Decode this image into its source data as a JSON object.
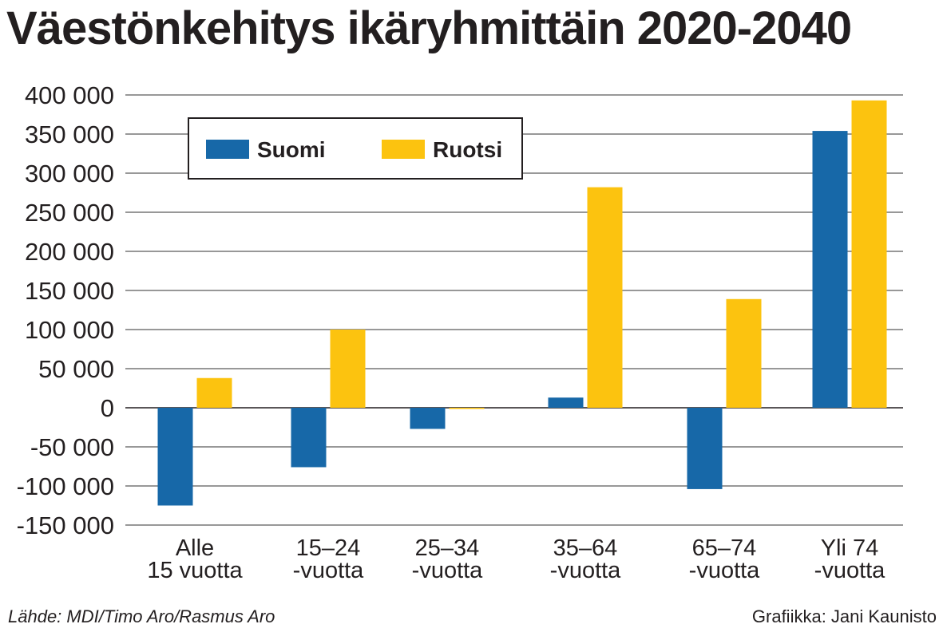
{
  "title": "Väestönkehitys ikäryhmittäin 2020-2040",
  "source": "Lähde: MDI/Timo Aro/Rasmus Aro",
  "credit": "Grafiikka: Jani Kaunisto",
  "colors": {
    "suomi": "#1768a8",
    "ruotsi": "#fcc30f",
    "grid": "#5a5a5a",
    "text": "#231f20"
  },
  "chart_data": {
    "type": "bar",
    "categories": [
      [
        "Alle",
        "15 vuotta"
      ],
      [
        "15–24",
        "-vuotta"
      ],
      [
        "25–34",
        "-vuotta"
      ],
      [
        "35–64",
        "-vuotta"
      ],
      [
        "65–74",
        "-vuotta"
      ],
      [
        "Yli 74",
        "-vuotta"
      ]
    ],
    "series": [
      {
        "name": "Suomi",
        "color": "#1768a8",
        "values": [
          -125000,
          -76000,
          -27000,
          13000,
          -104000,
          354000
        ]
      },
      {
        "name": "Ruotsi",
        "color": "#fcc30f",
        "values": [
          38000,
          100000,
          -1500,
          282000,
          139000,
          393000
        ]
      }
    ],
    "ylim": [
      -150000,
      400000
    ],
    "yticks": [
      400000,
      350000,
      300000,
      250000,
      200000,
      150000,
      100000,
      50000,
      0,
      -50000,
      -100000,
      -150000
    ],
    "ytick_labels": [
      "400 000",
      "350 000",
      "300 000",
      "250 000",
      "200 000",
      "150 000",
      "100 000",
      "50 000",
      "0",
      "-50 000",
      "-100 000",
      "-150 000"
    ],
    "grid": true,
    "legend_position": "top-left"
  }
}
